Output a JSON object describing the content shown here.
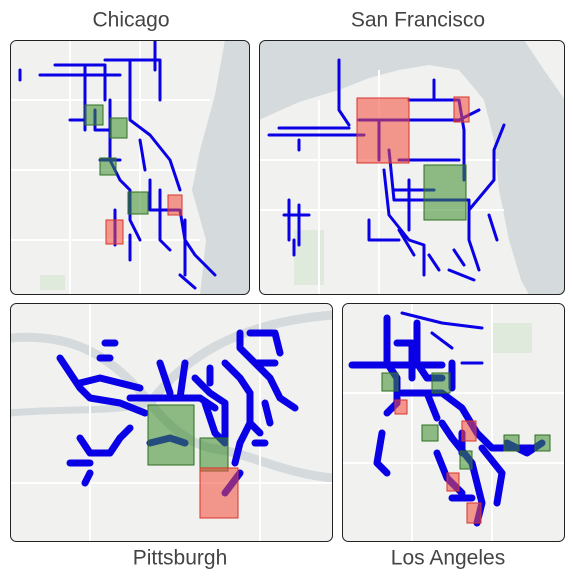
{
  "panels": [
    {
      "title": "Chicago"
    },
    {
      "title": "San Francisco"
    },
    {
      "title": "Pittsburgh"
    },
    {
      "title": "Los Angeles"
    }
  ]
}
